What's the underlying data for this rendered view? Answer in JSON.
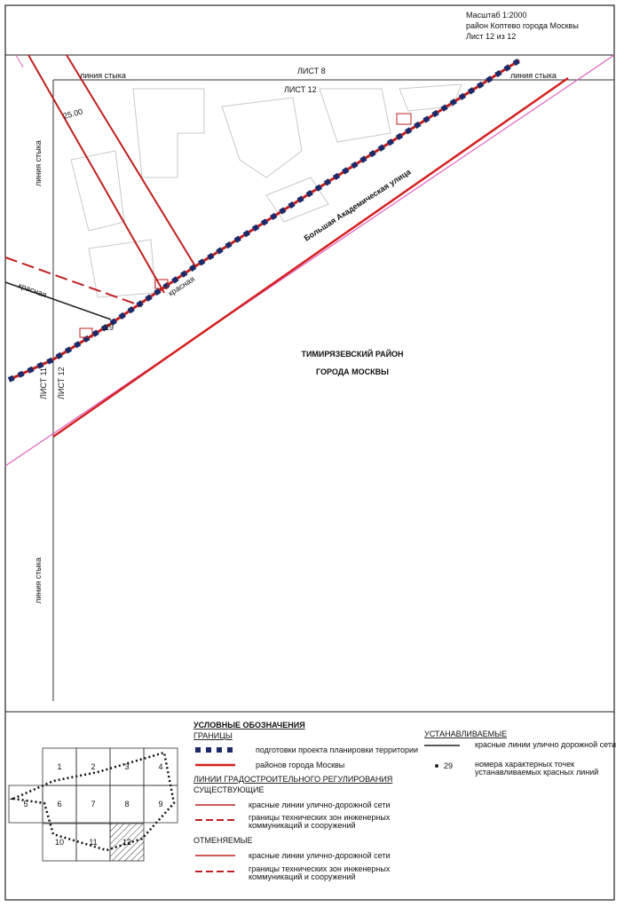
{
  "header": {
    "scale": "Масштаб 1:2000",
    "district": "район Коптево города Москвы",
    "sheet": "Лист 12 из 12"
  },
  "map": {
    "sheet_top": "ЛИСТ 8",
    "sheet_current": "ЛИСТ 12",
    "sheet_left": "ЛИСТ 11",
    "sheet_current_vertical": "ЛИСТ 12",
    "joint_line_top_left": "линия стыка",
    "joint_line_top_right": "линия стыка",
    "joint_line_left_upper": "линия стыка",
    "joint_line_left_lower": "линия стыка",
    "street": "Большая Академическая улица",
    "district_line1": "ТИМИРЯЗЕВСКИЙ РАЙОН",
    "district_line2": "ГОРОДА МОСКВЫ",
    "dimension": "25.00",
    "point_number": "29",
    "red_label_1": "красная",
    "red_label_2": "красная"
  },
  "legend": {
    "title": "УСЛОВНЫЕ ОБОЗНАЧЕНИЯ",
    "boundaries": "ГРАНИЦЫ",
    "planning_project": "подготовки проекта планировки территории",
    "city_districts": "районов города Москвы",
    "regulation_lines": "ЛИНИИ ГРАДОСТРОИТЕЛЬНОГО РЕГУЛИРОВАНИЯ",
    "existing": "СУЩЕСТВУЮЩИЕ",
    "existing_red": "красные линии улично-дорожной сети",
    "existing_zones": [
      "границы технических зон инженерных",
      "коммуникаций и сооружений"
    ],
    "cancelled": "ОТМЕНЯЕМЫЕ",
    "cancelled_red": "красные линии улично-дорожной сети",
    "cancelled_zones": [
      "границы технических зон инженерных",
      "коммуникаций и сооружений"
    ],
    "established": "УСТАНАВЛИВАЕМЫЕ",
    "established_red": "красные линии улично дорожной сети",
    "point_sample": "29",
    "point_numbers": [
      "номера характерных точек",
      "устанавливаемых красных линий"
    ]
  },
  "index": {
    "cells": [
      "1",
      "2",
      "3",
      "4",
      "5",
      "6",
      "7",
      "8",
      "9",
      "10",
      "11",
      "12"
    ]
  }
}
